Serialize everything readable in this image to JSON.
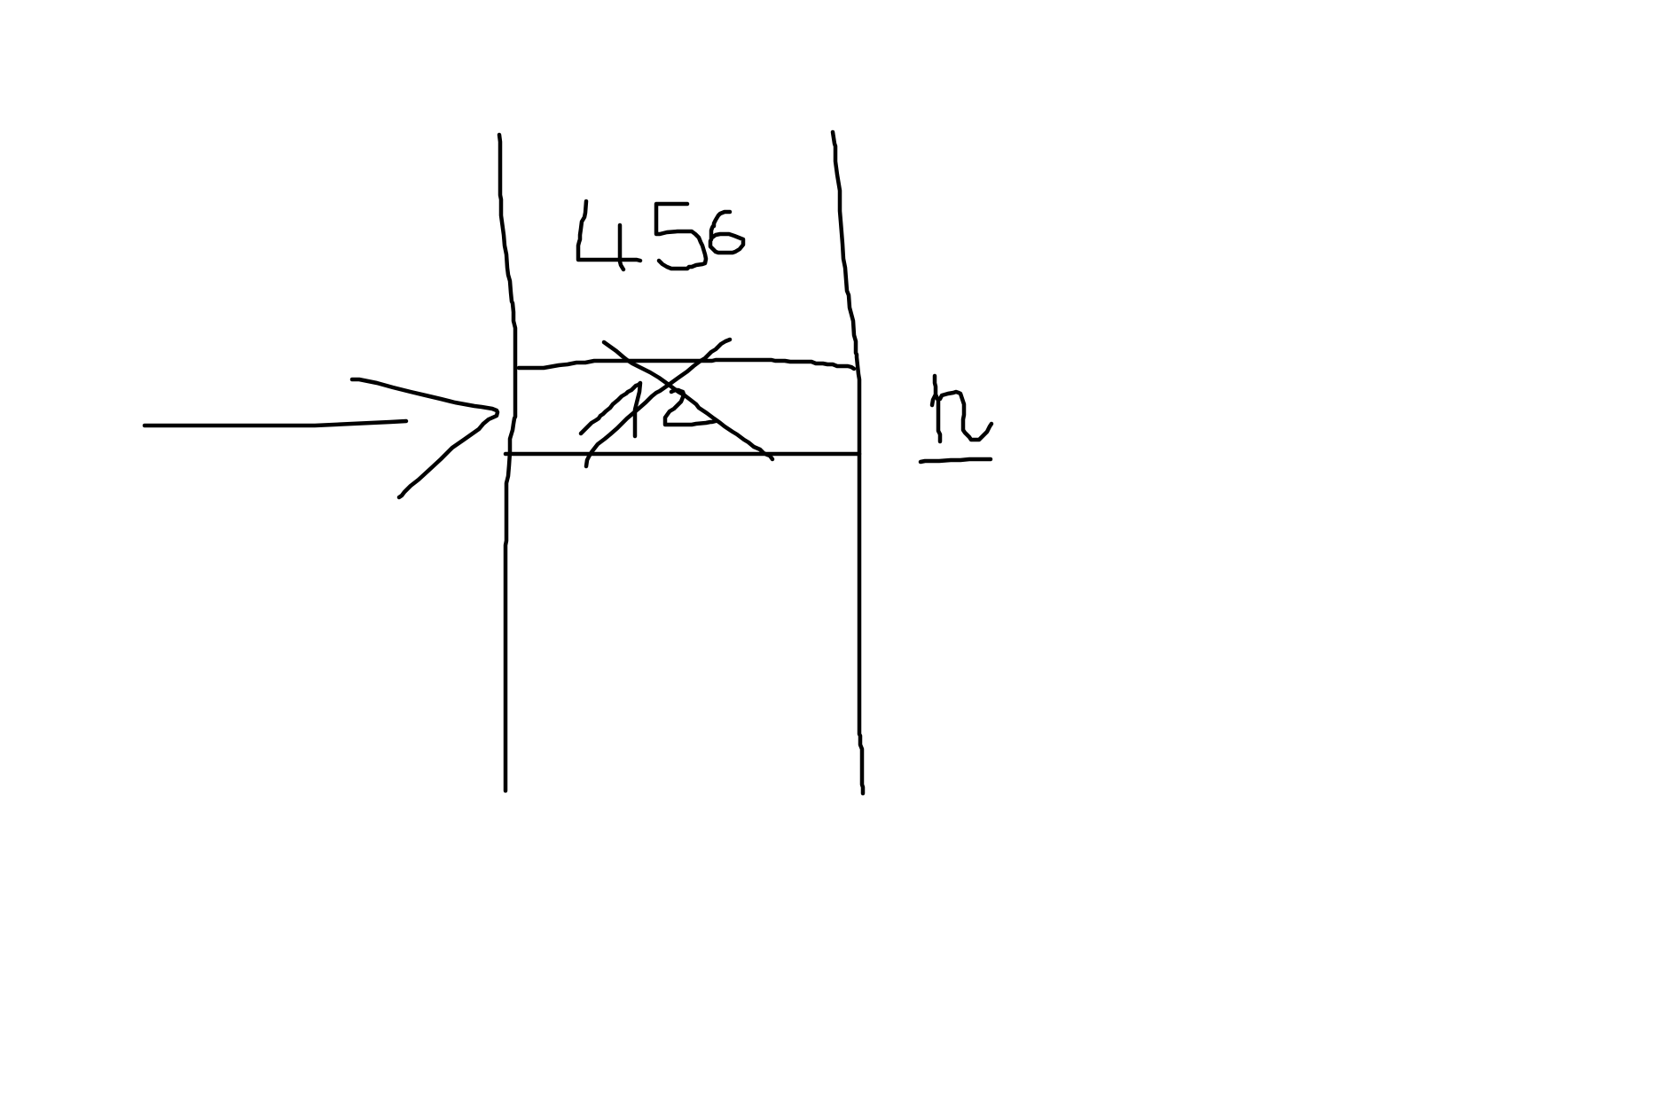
{
  "labels": {
    "top_number": "456",
    "crossed_number": "12",
    "side_letter": "h"
  },
  "colors": {
    "ink": "#000000",
    "background": "#ffffff"
  }
}
